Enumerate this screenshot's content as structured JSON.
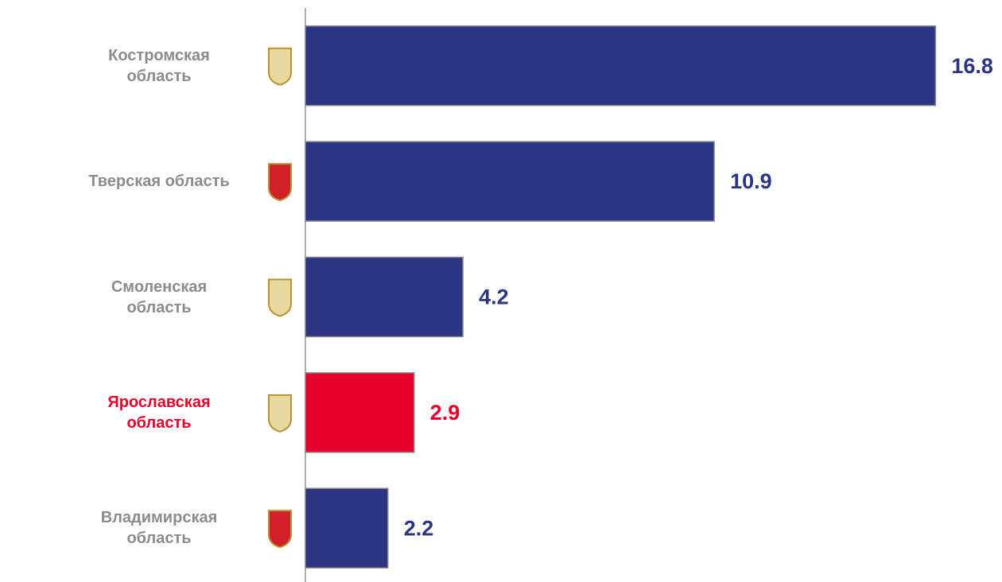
{
  "chart_data": {
    "type": "bar",
    "orientation": "horizontal",
    "categories": [
      "Костромская область",
      "Тверская область",
      "Смоленская область",
      "Ярославская область",
      "Владимирская область"
    ],
    "values": [
      16.8,
      10.9,
      4.2,
      2.9,
      2.2
    ],
    "colors": [
      "#2b3583",
      "#2b3583",
      "#2b3583",
      "#e4002b",
      "#2b3583"
    ],
    "label_colors": [
      "#8c8c8c",
      "#8c8c8c",
      "#8c8c8c",
      "#e4002b",
      "#8c8c8c"
    ],
    "xlim": [
      0,
      18
    ]
  }
}
